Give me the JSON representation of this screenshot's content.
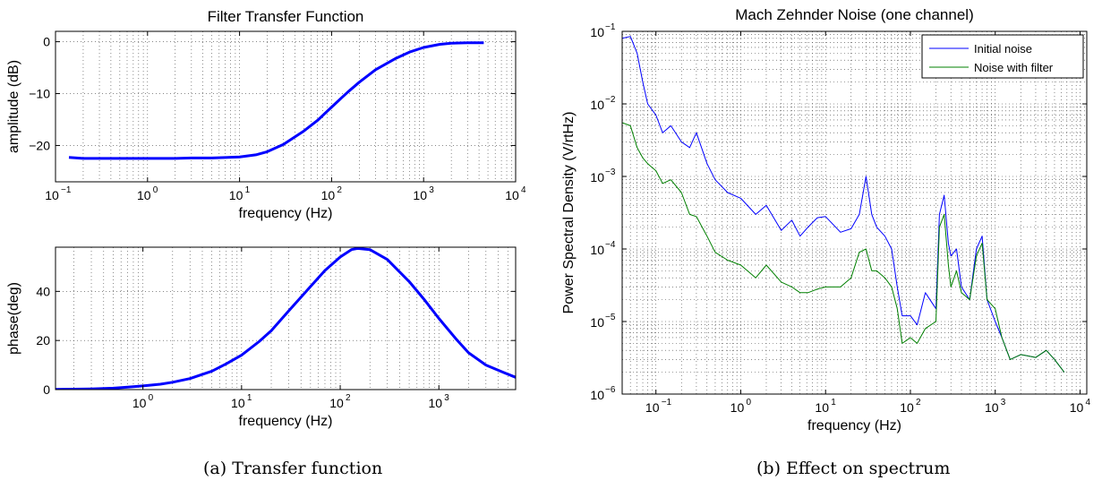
{
  "captions": {
    "a": "(a) Transfer function",
    "b": "(b) Effect on spectrum"
  },
  "chart_data": [
    {
      "id": "amp",
      "type": "line",
      "title": "Filter Transfer Function",
      "xlabel": "frequency (Hz)",
      "ylabel": "amplitude (dB)",
      "xscale": "log",
      "xlim": [
        0.1,
        10000
      ],
      "ylim": [
        -27,
        2
      ],
      "xticks": [
        {
          "v": 0.1,
          "m": "10",
          "e": "−1"
        },
        {
          "v": 1,
          "m": "10",
          "e": "0"
        },
        {
          "v": 10,
          "m": "10",
          "e": "1"
        },
        {
          "v": 100,
          "m": "10",
          "e": "2"
        },
        {
          "v": 1000,
          "m": "10",
          "e": "3"
        },
        {
          "v": 10000,
          "m": "10",
          "e": "4"
        }
      ],
      "yticks": [
        {
          "v": 0,
          "label": "0"
        },
        {
          "v": -10,
          "label": "−10"
        },
        {
          "v": -20,
          "label": "−20"
        }
      ],
      "grid": true,
      "series": [
        {
          "color": "#0000ff",
          "x": [
            0.14,
            0.2,
            0.5,
            1,
            2,
            3,
            5,
            10,
            15,
            20,
            30,
            50,
            70,
            100,
            150,
            200,
            300,
            500,
            700,
            1000,
            1500,
            2000,
            3000,
            4500
          ],
          "y": [
            -22.3,
            -22.5,
            -22.5,
            -22.5,
            -22.5,
            -22.4,
            -22.4,
            -22.2,
            -21.8,
            -21.2,
            -19.8,
            -17.2,
            -15.2,
            -12.6,
            -9.7,
            -7.8,
            -5.4,
            -3.2,
            -2.0,
            -1.1,
            -0.5,
            -0.3,
            -0.2,
            -0.2
          ]
        }
      ]
    },
    {
      "id": "phase",
      "type": "line",
      "xlabel": "frequency (Hz)",
      "ylabel": "phase(deg)",
      "xscale": "log",
      "xlim": [
        0.13,
        6000
      ],
      "ylim": [
        0,
        58
      ],
      "xticks": [
        {
          "v": 1,
          "m": "10",
          "e": "0"
        },
        {
          "v": 10,
          "m": "10",
          "e": "1"
        },
        {
          "v": 100,
          "m": "10",
          "e": "2"
        },
        {
          "v": 1000,
          "m": "10",
          "e": "3"
        }
      ],
      "yticks": [
        {
          "v": 0,
          "label": "0"
        },
        {
          "v": 20,
          "label": "20"
        },
        {
          "v": 40,
          "label": "40"
        }
      ],
      "grid": true,
      "series": [
        {
          "color": "#0000ff",
          "x": [
            0.13,
            0.2,
            0.3,
            0.5,
            0.7,
            1,
            1.5,
            2,
            3,
            5,
            7,
            10,
            15,
            20,
            30,
            50,
            70,
            100,
            130,
            150,
            200,
            300,
            500,
            700,
            1000,
            1500,
            2000,
            3000,
            4500,
            6000
          ],
          "y": [
            0.1,
            0.2,
            0.3,
            0.6,
            1,
            1.5,
            2.2,
            3,
            4.5,
            7.5,
            10.5,
            14,
            19.5,
            24,
            32,
            42,
            48.5,
            54,
            57,
            57.5,
            57,
            53,
            44,
            37,
            29,
            20.5,
            15,
            10,
            7,
            5
          ]
        }
      ]
    },
    {
      "id": "psd",
      "type": "line",
      "title": "Mach Zehnder Noise (one channel)",
      "xlabel": "frequency (Hz)",
      "ylabel": "Power Spectral Density (V/rtHz)",
      "xscale": "log",
      "yscale": "log",
      "xlim": [
        0.04,
        12000
      ],
      "ylim": [
        1e-06,
        0.1
      ],
      "xticks": [
        {
          "v": 0.1,
          "m": "10",
          "e": "−1"
        },
        {
          "v": 1,
          "m": "10",
          "e": "0"
        },
        {
          "v": 10,
          "m": "10",
          "e": "1"
        },
        {
          "v": 100,
          "m": "10",
          "e": "2"
        },
        {
          "v": 1000,
          "m": "10",
          "e": "3"
        },
        {
          "v": 10000,
          "m": "10",
          "e": "4"
        }
      ],
      "yticks": [
        {
          "v": 1e-06,
          "m": "10",
          "e": "−6"
        },
        {
          "v": 1e-05,
          "m": "10",
          "e": "−5"
        },
        {
          "v": 0.0001,
          "m": "10",
          "e": "−4"
        },
        {
          "v": 0.001,
          "m": "10",
          "e": "−3"
        },
        {
          "v": 0.01,
          "m": "10",
          "e": "−2"
        },
        {
          "v": 0.1,
          "m": "10",
          "e": "−1"
        }
      ],
      "grid": true,
      "legend_position": "top-right",
      "series": [
        {
          "name": "Initial noise",
          "color": "#0000ff",
          "x": [
            0.04,
            0.05,
            0.06,
            0.07,
            0.08,
            0.1,
            0.12,
            0.15,
            0.2,
            0.25,
            0.3,
            0.4,
            0.5,
            0.7,
            1,
            1.5,
            2,
            3,
            4,
            5,
            6.2,
            8,
            10,
            15,
            20,
            25,
            30,
            35,
            40,
            50,
            60,
            70,
            80,
            100,
            120,
            150,
            200,
            220,
            250,
            280,
            300,
            350,
            400,
            500,
            600,
            700,
            800,
            1000,
            1200,
            1500,
            2000,
            3000,
            4000,
            5000,
            6500
          ],
          "y": [
            0.08,
            0.085,
            0.05,
            0.02,
            0.01,
            0.007,
            0.004,
            0.005,
            0.003,
            0.0025,
            0.004,
            0.0015,
            0.0009,
            0.0006,
            0.0005,
            0.0003,
            0.0004,
            0.00018,
            0.00025,
            0.00015,
            0.0002,
            0.00027,
            0.00028,
            0.00017,
            0.00019,
            0.0003,
            0.001,
            0.0003,
            0.0002,
            0.00015,
            0.0001,
            3e-05,
            1.2e-05,
            1.2e-05,
            9e-06,
            2.5e-05,
            1.5e-05,
            0.0003,
            0.00055,
            0.00012,
            8e-05,
            0.0001,
            3e-05,
            2e-05,
            0.0001,
            0.00015,
            2e-05,
            1e-05,
            6e-06,
            3e-06,
            3.5e-06,
            3.2e-06,
            4e-06,
            3e-06,
            2e-06
          ]
        },
        {
          "name": "Noise with filter",
          "color": "#008000",
          "x": [
            0.04,
            0.05,
            0.06,
            0.07,
            0.08,
            0.1,
            0.12,
            0.15,
            0.2,
            0.25,
            0.3,
            0.4,
            0.5,
            0.7,
            1,
            1.5,
            2,
            3,
            4,
            5,
            6.2,
            8,
            10,
            15,
            20,
            25,
            30,
            35,
            40,
            50,
            60,
            70,
            80,
            100,
            120,
            150,
            200,
            220,
            250,
            280,
            300,
            350,
            400,
            500,
            600,
            700,
            800,
            1000,
            1200,
            1500,
            2000,
            3000,
            4000,
            5000,
            6500
          ],
          "y": [
            0.0055,
            0.005,
            0.0025,
            0.0018,
            0.0015,
            0.0012,
            0.0008,
            0.0009,
            0.0006,
            0.0003,
            0.00028,
            0.00015,
            9e-05,
            7e-05,
            6e-05,
            4e-05,
            6e-05,
            3.5e-05,
            3e-05,
            2.5e-05,
            2.5e-05,
            2.8e-05,
            3e-05,
            3e-05,
            4e-05,
            9e-05,
            0.0001,
            5e-05,
            5e-05,
            4e-05,
            3e-05,
            1.5e-05,
            5e-06,
            6e-06,
            5e-06,
            8e-06,
            1e-05,
            0.0002,
            0.0003,
            6e-05,
            3e-05,
            5e-05,
            2.5e-05,
            2e-05,
            8e-05,
            0.00012,
            2e-05,
            1.5e-05,
            6e-06,
            3e-06,
            3.5e-06,
            3.2e-06,
            4e-06,
            3e-06,
            2e-06
          ]
        }
      ]
    }
  ]
}
